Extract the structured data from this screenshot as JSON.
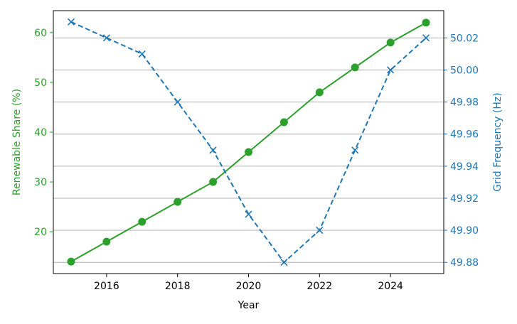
{
  "chart_data": {
    "type": "line",
    "title": "",
    "xlabel": "Year",
    "ylabel_left": "Renewable Share (%)",
    "ylabel_right": "Grid Frequency (Hz)",
    "x": [
      2015,
      2016,
      2017,
      2018,
      2019,
      2020,
      2021,
      2022,
      2023,
      2024,
      2025
    ],
    "x_ticks": [
      "2016",
      "2018",
      "2020",
      "2022",
      "2024"
    ],
    "y_left_ticks": [
      "20",
      "30",
      "40",
      "50",
      "60"
    ],
    "y_right_ticks": [
      "49.88",
      "49.90",
      "49.92",
      "49.94",
      "49.96",
      "49.98",
      "50.00",
      "50.02"
    ],
    "xlim": [
      2014.5,
      2025.5
    ],
    "ylim_left": [
      11.6,
      64.4
    ],
    "ylim_right": [
      49.873,
      50.037
    ],
    "grid": "horizontal lines on right axis",
    "series": [
      {
        "axis": "left",
        "marker": "circle",
        "linestyle": "solid",
        "color": "#2ca02c",
        "values": [
          14,
          18,
          22,
          26,
          30,
          36,
          42,
          48,
          53,
          58,
          62
        ]
      },
      {
        "axis": "right",
        "marker": "x",
        "linestyle": "dashed",
        "color": "#1f77b4",
        "values": [
          50.03,
          50.02,
          50.01,
          49.98,
          49.95,
          49.91,
          49.88,
          49.9,
          49.95,
          50.0,
          50.02
        ]
      }
    ]
  }
}
